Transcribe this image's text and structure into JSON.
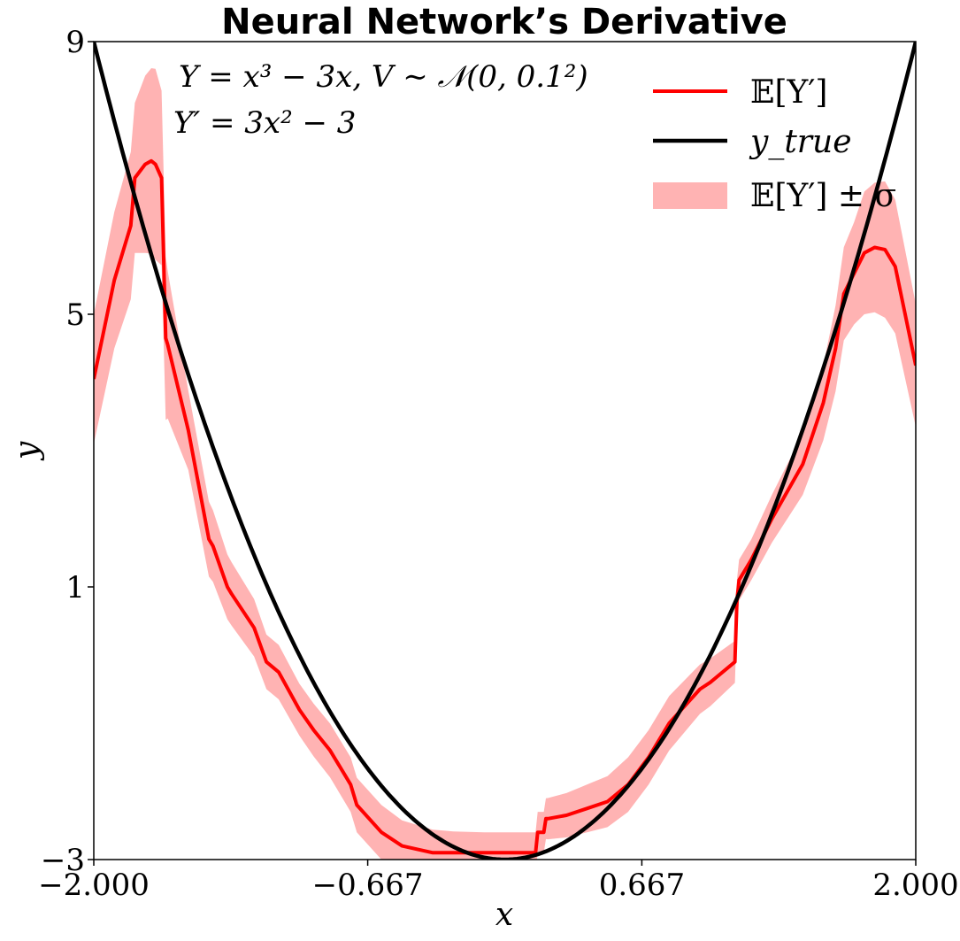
{
  "chart_data": {
    "type": "line",
    "title": "Neural Network’s Derivative",
    "xlabel": "x",
    "ylabel": "y",
    "xlim": [
      -2.0,
      2.0
    ],
    "ylim": [
      -3,
      9
    ],
    "x_ticks": [
      -2.0,
      -0.667,
      0.667,
      2.0
    ],
    "x_tick_labels": [
      "−2.000",
      "−0.667",
      "0.667",
      "2.000"
    ],
    "y_ticks": [
      -3,
      1,
      5,
      9
    ],
    "y_tick_labels": [
      "−3",
      "1",
      "5",
      "9"
    ],
    "grid": false,
    "legend_position": "top-right",
    "annotations": [
      "Y = x³ − 3x,  V ∼ 𝒩(0, 0.1²)",
      "Y′ = 3x² − 3"
    ],
    "series": [
      {
        "name": "𝔼[Y′]",
        "kind": "line",
        "color": "#ff0000",
        "x": [
          -2.0,
          -1.9,
          -1.82,
          -1.8,
          -1.75,
          -1.72,
          -1.7,
          -1.67,
          -1.65,
          -1.64,
          -1.54,
          -1.44,
          -1.42,
          -1.35,
          -1.33,
          -1.22,
          -1.16,
          -1.1,
          -1.0,
          -0.93,
          -0.85,
          -0.75,
          -0.72,
          -0.6,
          -0.5,
          -0.35,
          -0.25,
          -0.1,
          0.0,
          0.15,
          0.16,
          0.19,
          0.2,
          0.21,
          0.3,
          0.4,
          0.5,
          0.6,
          0.7,
          0.8,
          0.95,
          1.0,
          1.12,
          1.13,
          1.14,
          1.2,
          1.3,
          1.45,
          1.55,
          1.61,
          1.65,
          1.7,
          1.75,
          1.8,
          1.85,
          1.9,
          2.0
        ],
        "y": [
          4.05,
          5.5,
          6.3,
          7.0,
          7.2,
          7.25,
          7.2,
          7.0,
          4.65,
          4.55,
          3.3,
          1.7,
          1.6,
          1.0,
          0.9,
          0.4,
          -0.1,
          -0.25,
          -0.8,
          -1.1,
          -1.4,
          -1.9,
          -2.2,
          -2.6,
          -2.8,
          -2.9,
          -2.9,
          -2.9,
          -2.9,
          -2.9,
          -2.6,
          -2.6,
          -2.4,
          -2.4,
          -2.35,
          -2.25,
          -2.15,
          -1.9,
          -1.5,
          -1.0,
          -0.5,
          -0.4,
          -0.1,
          0.8,
          1.1,
          1.4,
          2.0,
          2.8,
          3.7,
          4.5,
          5.3,
          5.6,
          5.9,
          5.98,
          5.95,
          5.7,
          4.25
        ]
      },
      {
        "name": "y_true",
        "kind": "function",
        "expression": "3x² − 3",
        "color": "#000000"
      },
      {
        "name": "𝔼[Y′] ± σ",
        "kind": "band",
        "color": "#ffb3b3",
        "sigma_x": [
          -2.0,
          -1.9,
          -1.8,
          -1.75,
          -1.7,
          -1.65,
          -1.6,
          -1.44,
          -1.4,
          -1.3,
          -1.16,
          -1.1,
          -1.0,
          -0.8,
          -0.6,
          -0.4,
          -0.2,
          0.0,
          0.2,
          0.4,
          0.6,
          0.8,
          1.0,
          1.14,
          1.2,
          1.4,
          1.55,
          1.7,
          1.75,
          1.8,
          1.85,
          1.9,
          2.0
        ],
        "sigma": [
          0.95,
          1.0,
          1.1,
          1.3,
          1.4,
          1.2,
          0.6,
          0.55,
          0.5,
          0.45,
          0.4,
          0.4,
          0.38,
          0.4,
          0.4,
          0.35,
          0.3,
          0.3,
          0.3,
          0.35,
          0.4,
          0.4,
          0.35,
          0.3,
          0.3,
          0.4,
          0.55,
          0.75,
          0.9,
          0.95,
          1.0,
          0.98,
          0.9
        ]
      }
    ]
  }
}
